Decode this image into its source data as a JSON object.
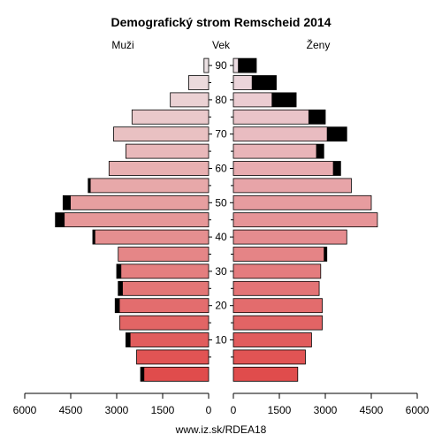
{
  "chart_data": {
    "type": "bar",
    "title": "Demografický strom Remscheid 2014",
    "left_label": "Muži",
    "center_label": "Vek",
    "right_label": "Ženy",
    "footer": "www.iz.sk/RDEA18",
    "x_axis": {
      "min": 0,
      "max": 6000,
      "left_tick_labels": [
        "6000",
        "4500",
        "3000",
        "1500",
        "0"
      ],
      "right_tick_labels": [
        "0",
        "1500",
        "3000",
        "4500",
        "6000"
      ],
      "tick_values": [
        6000,
        4500,
        3000,
        1500,
        0
      ]
    },
    "age_ticks": [
      "10",
      "20",
      "30",
      "40",
      "50",
      "60",
      "70",
      "80",
      "90"
    ],
    "age_groups": [
      "0-4",
      "5-9",
      "10-14",
      "15-19",
      "20-24",
      "25-29",
      "30-34",
      "35-39",
      "40-44",
      "45-49",
      "50-54",
      "55-59",
      "60-64",
      "65-69",
      "70-74",
      "75-79",
      "80-84",
      "85-89",
      "90+"
    ],
    "colors": {
      "surplus": "#000000",
      "male_base": "#e05050",
      "female_base": "#e05050",
      "outline": "#000000"
    },
    "series": [
      {
        "name": "Muži",
        "values": [
          2100,
          2350,
          2550,
          2900,
          2900,
          2800,
          2850,
          2950,
          3700,
          4700,
          4500,
          3850,
          3250,
          2700,
          3100,
          2500,
          1250,
          650,
          150
        ]
      },
      {
        "name": "Ženy",
        "values": [
          2100,
          2350,
          2550,
          2900,
          2900,
          2800,
          2850,
          2950,
          3700,
          4700,
          4500,
          3850,
          3250,
          2700,
          3050,
          2450,
          1250,
          600,
          150
        ]
      }
    ],
    "surplus": {
      "male": [
        120,
        0,
        150,
        0,
        150,
        150,
        150,
        0,
        80,
        300,
        250,
        80,
        0,
        0,
        0,
        0,
        0,
        0,
        0
      ],
      "female": [
        0,
        0,
        0,
        0,
        0,
        0,
        0,
        100,
        0,
        0,
        0,
        0,
        250,
        250,
        650,
        550,
        800,
        800,
        600
      ]
    }
  }
}
